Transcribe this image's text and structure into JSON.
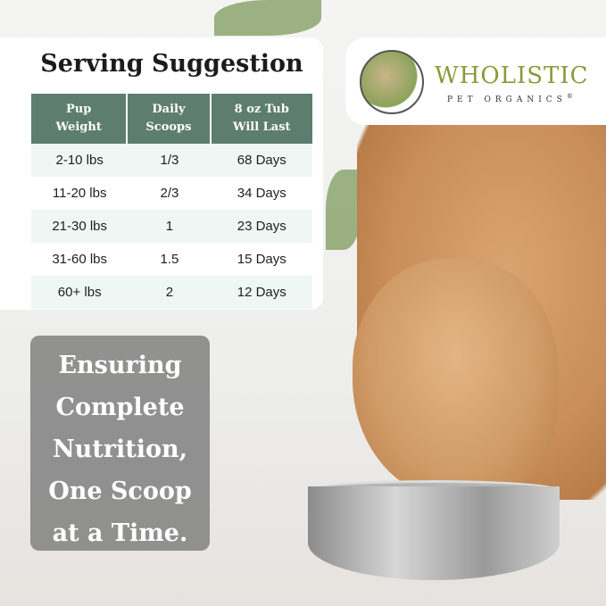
{
  "serving": {
    "title": "Serving Suggestion",
    "headers": [
      [
        "Pup",
        "Weight"
      ],
      [
        "Daily",
        "Scoops"
      ],
      [
        "8 oz Tub",
        "Will Last"
      ]
    ],
    "rows": [
      [
        "2-10 lbs",
        "1/3",
        "68 Days"
      ],
      [
        "11-20 lbs",
        "2/3",
        "34 Days"
      ],
      [
        "21-30 lbs",
        "1",
        "23 Days"
      ],
      [
        "31-60 lbs",
        "1.5",
        "15 Days"
      ],
      [
        "60+ lbs",
        "2",
        "12 Days"
      ]
    ]
  },
  "brand": {
    "name": "WHOLISTIC",
    "tagline": "PET ORGANICS",
    "mark": "®"
  },
  "quote": {
    "lines": [
      "Ensuring",
      "Complete",
      "Nutrition,",
      "One Scoop",
      "at a Time."
    ]
  },
  "colors": {
    "header": "#5d7d6f",
    "alt_row": "#eef7f3",
    "brand": "#8a9a3a"
  }
}
